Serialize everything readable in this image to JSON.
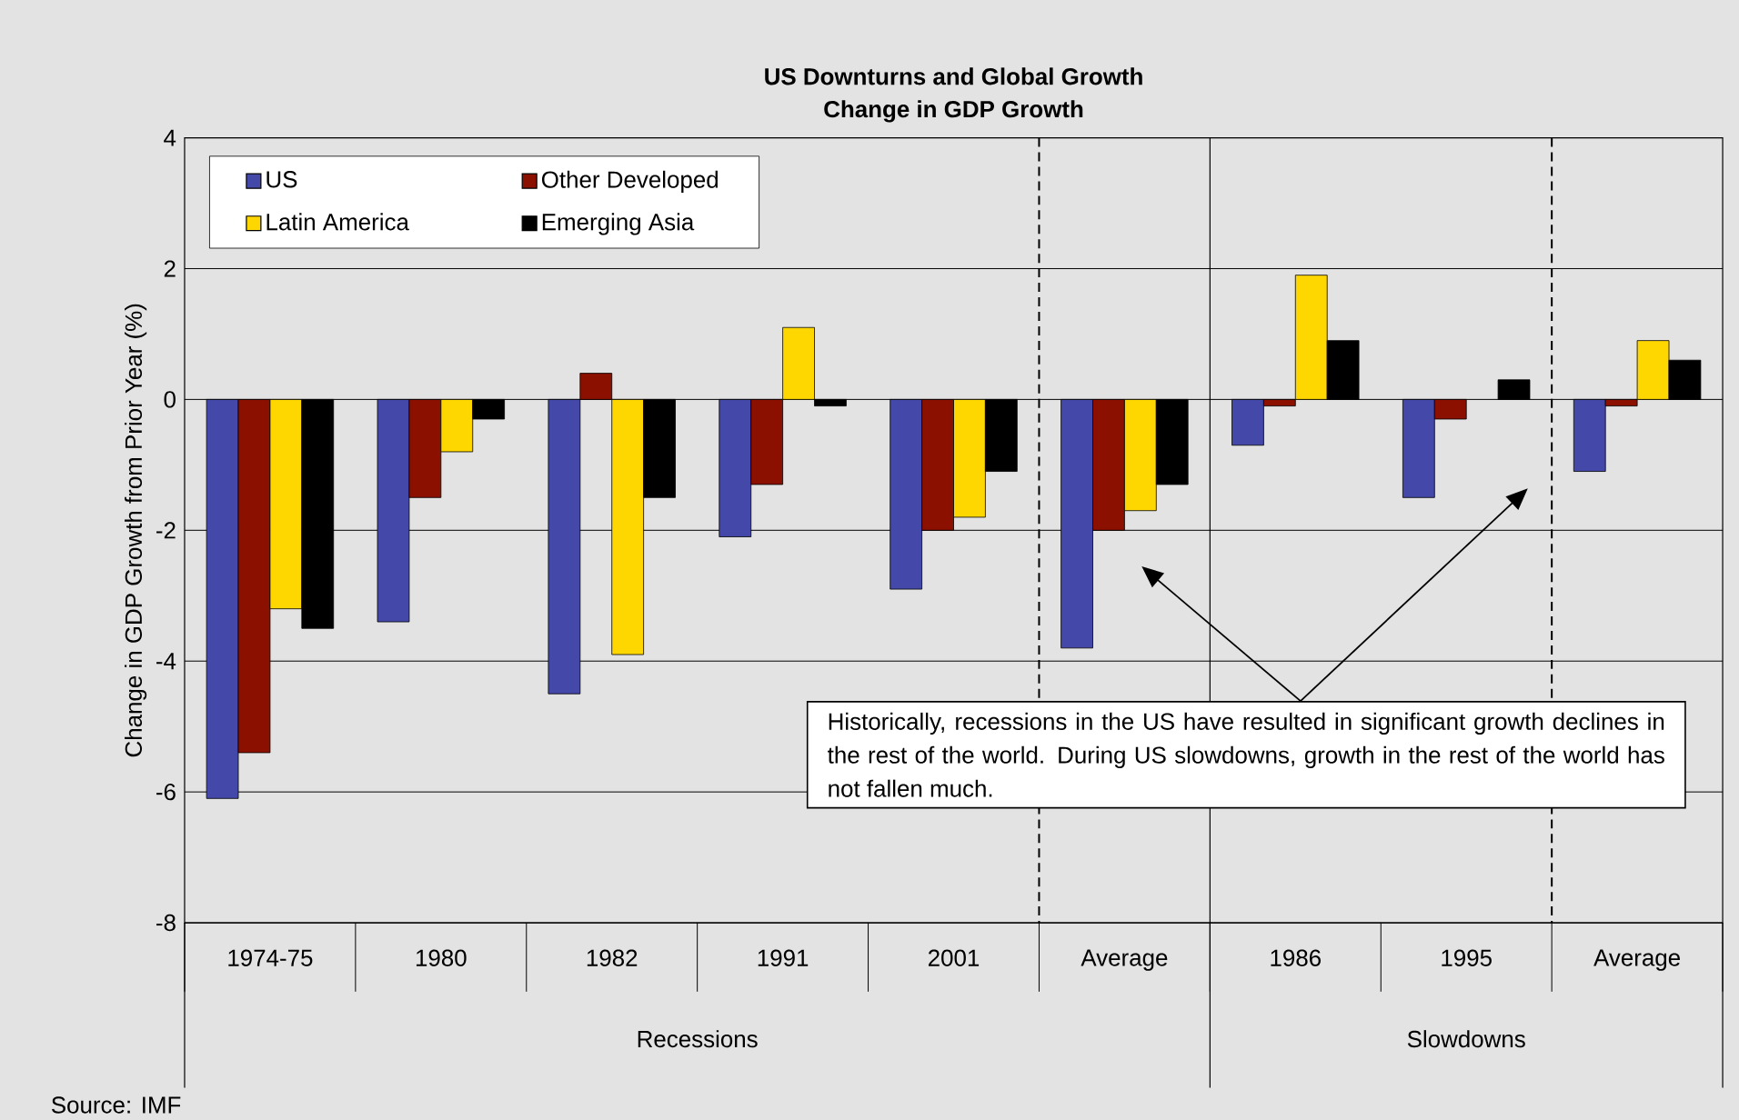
{
  "chart_data": {
    "type": "bar",
    "title": "US Downturns and Global Growth",
    "subtitle": "Change in GDP Growth",
    "ylabel": "Change in GDP Growth from Prior Year (%)",
    "categories": [
      "1974-75",
      "1980",
      "1982",
      "1991",
      "2001",
      "Average",
      "1986",
      "1995",
      "Average"
    ],
    "series": [
      {
        "name": "US",
        "color": "#4448a8",
        "values": [
          -6.1,
          -3.4,
          -4.5,
          -2.1,
          -2.9,
          -3.8,
          -0.7,
          -1.5,
          -1.1
        ]
      },
      {
        "name": "Other Developed",
        "color": "#8b1000",
        "values": [
          -5.4,
          -1.5,
          0.4,
          -1.3,
          -2.0,
          -2.0,
          -0.1,
          -0.3,
          -0.1
        ]
      },
      {
        "name": "Latin America",
        "color": "#ffd700",
        "values": [
          -3.2,
          -0.8,
          -3.9,
          1.1,
          -1.8,
          -1.7,
          1.9,
          null,
          0.9
        ]
      },
      {
        "name": "Emerging Asia",
        "color": "#000000",
        "values": [
          -3.5,
          -0.3,
          -1.5,
          -0.1,
          -1.1,
          -1.3,
          0.9,
          0.3,
          0.6
        ]
      }
    ],
    "ylim": [
      -8,
      4
    ],
    "yticks": [
      -8,
      -6,
      -4,
      -2,
      0,
      2,
      4
    ],
    "grid": "y",
    "legend": "top left",
    "annotations": [
      "Historically, recessions in the US have resulted in significant growth declines in the rest of the world.  During US slowdowns, growth in the rest of the world has not fallen much.",
      "Recessions",
      "Slowdowns",
      "Source: IMF"
    ]
  }
}
